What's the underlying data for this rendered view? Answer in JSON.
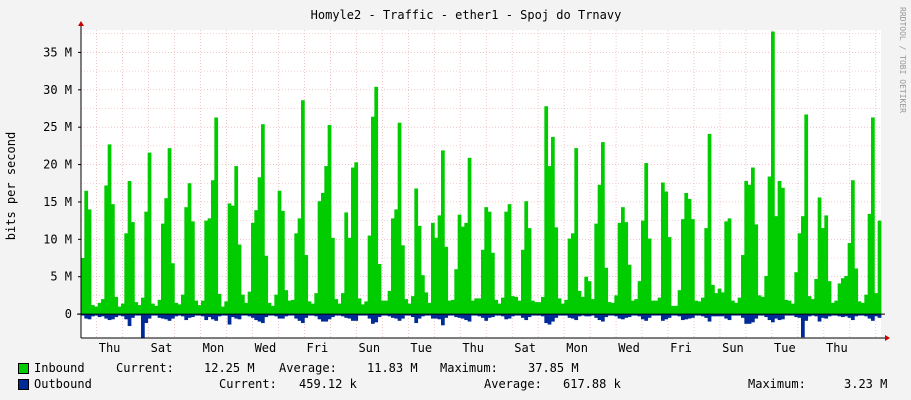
{
  "window": {
    "title": "Homyle2 - Traffic - ether1 - Spoj do Trnavy"
  },
  "watermark": "RRDTOOL / TOBI OETIKER",
  "colors": {
    "background": "#f3f3f3",
    "canvas": "#ffffff",
    "inbound": "#00cc00",
    "outbound": "#002a97",
    "grid_major": "#e6a3a3",
    "grid_minor": "#eeaaaa",
    "axis": "#c80000"
  },
  "legend": {
    "inbound": {
      "name": "Inbound",
      "current_label": "Current:",
      "current": "12.25 M",
      "average_label": "Average:",
      "average": "11.83 M",
      "maximum_label": "Maximum:",
      "maximum": "37.85 M"
    },
    "outbound": {
      "name": "Outbound",
      "current_label": "Current:",
      "current": "459.12 k",
      "average_label": "Average:",
      "average": "617.88 k",
      "maximum_label": "Maximum:",
      "maximum": "3.23 M"
    }
  },
  "chart_data": {
    "type": "area",
    "title": "Homyle2 - Traffic - ether1 - Spoj do Trnavy",
    "ylabel": "bits per second",
    "unit": "M",
    "ylim": [
      -3.2,
      38
    ],
    "yticks": [
      0,
      5,
      10,
      15,
      20,
      25,
      30,
      35
    ],
    "ytick_labels": [
      "0",
      "5 M",
      "10 M",
      "15 M",
      "20 M",
      "25 M",
      "30 M",
      "35 M"
    ],
    "x_day_labels": [
      "Thu",
      "Sat",
      "Mon",
      "Wed",
      "Fri",
      "Sun",
      "Tue",
      "Thu",
      "Sat",
      "Mon",
      "Wed",
      "Fri",
      "Sun",
      "Tue",
      "Thu"
    ],
    "x_days_total": 30.8,
    "grid": true,
    "legend_position": "bottom",
    "series": [
      {
        "name": "Inbound",
        "values": [
          7.5,
          16.5,
          14,
          1.2,
          1,
          1.5,
          2,
          17.2,
          22.7,
          14.7,
          2.3,
          1,
          1.4,
          10.8,
          17.8,
          12.3,
          1.6,
          1.2,
          2.2,
          13.7,
          21.6,
          1.4,
          1.1,
          1.9,
          12.1,
          15.5,
          22.2,
          6.8,
          1.5,
          1.3,
          2.6,
          14.3,
          17.5,
          12.4,
          1.8,
          1.2,
          1.8,
          12.5,
          12.8,
          17.9,
          26.3,
          2.7,
          1,
          1.7,
          14.8,
          14.5,
          19.8,
          9.3,
          2.6,
          1.5,
          3,
          12.2,
          13.9,
          18.3,
          25.4,
          7.8,
          1.5,
          1.1,
          2.6,
          16.5,
          13.8,
          3.2,
          1.8,
          1.9,
          10.8,
          12.8,
          28.6,
          7.9,
          1.7,
          1.4,
          2.8,
          15.1,
          16.2,
          19.8,
          25.3,
          10.2,
          2,
          1.4,
          2.8,
          13.6,
          10.2,
          19.6,
          20.3,
          2.1,
          1.3,
          1.7,
          10.5,
          26.4,
          30.4,
          6.7,
          1.8,
          1.8,
          3.1,
          12.8,
          14,
          25.6,
          9.2,
          2,
          1.4,
          2.4,
          16.8,
          11.8,
          5.2,
          2.9,
          1.5,
          12.2,
          10.2,
          13.2,
          21.9,
          9,
          1.8,
          1.9,
          6,
          13.3,
          11.7,
          12.2,
          20.9,
          1.8,
          2.1,
          2.1,
          8.6,
          14.3,
          13.7,
          8.2,
          1.9,
          1.4,
          2.2,
          13.7,
          14.7,
          2.4,
          2.3,
          1.8,
          8.6,
          15.1,
          11.5,
          1.8,
          1.6,
          1.6,
          2.3,
          27.8,
          19.8,
          23.7,
          11.6,
          2.1,
          1.4,
          1.9,
          10.1,
          10.8,
          22.2,
          3.1,
          2.3,
          5,
          4.4,
          2,
          12.1,
          17.3,
          23,
          6.2,
          1.6,
          1.5,
          2.5,
          12.2,
          14.3,
          12.3,
          6.6,
          1.8,
          2,
          4.4,
          12.5,
          20.2,
          10.1,
          1.8,
          1.8,
          2.2,
          17.6,
          16.4,
          10.3,
          1.1,
          1.1,
          3.2,
          12.7,
          16.2,
          15.4,
          12.7,
          1.8,
          1.7,
          2.2,
          11.5,
          24.1,
          3.9,
          2.8,
          3.4,
          2.9,
          12.4,
          12.8,
          1.8,
          1.5,
          2.2,
          7.9,
          17.8,
          17.3,
          19.6,
          12,
          2.5,
          2.3,
          5.1,
          18.4,
          37.8,
          13.1,
          17.8,
          16.9,
          1.9,
          1.8,
          1.4,
          5.6,
          10.8,
          13.1,
          26.7,
          2.4,
          2,
          4.7,
          15.6,
          11.5,
          13.2,
          4.4,
          1.5,
          1.8,
          4.1,
          4.8,
          5.1,
          9.5,
          17.9,
          6.1,
          1.7,
          1.5,
          2.6,
          13.4,
          26.3,
          2.8,
          12.5
        ],
        "values_min": [
          -0.2,
          -0.6,
          -0.7,
          -0.3,
          -0.2,
          -0.4,
          -0.3,
          -0.6,
          -0.8,
          -0.7,
          -0.4,
          -0.2,
          -0.3,
          -0.7,
          -1.6,
          -0.5,
          -0.2,
          -0.2,
          -3.2,
          -1.2,
          -0.6,
          -0.2,
          -0.2,
          -0.5,
          -0.6,
          -0.7,
          -0.9,
          -0.6,
          -0.3,
          -0.2,
          -0.3,
          -0.8,
          -0.5,
          -0.4,
          -0.2,
          -0.2,
          -0.3,
          -0.8,
          -0.4,
          -0.7,
          -0.9,
          -0.3,
          -0.2,
          -0.2,
          -1.4,
          -0.4,
          -0.6,
          -0.7,
          -0.2,
          -0.2,
          -0.3,
          -0.5,
          -0.8,
          -1,
          -1.2,
          -0.4,
          -0.2,
          -0.2,
          -0.3,
          -0.6,
          -0.6,
          -0.3,
          -0.2,
          -0.2,
          -0.6,
          -0.9,
          -1.2,
          -0.5,
          -0.2,
          -0.2,
          -0.3,
          -0.7,
          -1,
          -1,
          -0.7,
          -0.4,
          -0.2,
          -0.2,
          -0.3,
          -0.5,
          -0.6,
          -0.9,
          -0.9,
          -0.2,
          -0.2,
          -0.2,
          -0.6,
          -1.3,
          -1.1,
          -0.4,
          -0.2,
          -0.2,
          -0.3,
          -0.5,
          -0.6,
          -0.9,
          -0.6,
          -0.2,
          -0.2,
          -0.4,
          -1.2,
          -0.6,
          -0.3,
          -0.2,
          -0.2,
          -0.6,
          -0.6,
          -0.7,
          -1.5,
          -0.5,
          -0.2,
          -0.2,
          -0.4,
          -0.5,
          -0.6,
          -0.8,
          -1,
          -0.2,
          -0.2,
          -0.3,
          -0.5,
          -0.9,
          -0.5,
          -0.4,
          -0.2,
          -0.2,
          -0.3,
          -0.7,
          -0.6,
          -0.3,
          -0.2,
          -0.2,
          -0.5,
          -0.8,
          -0.4,
          -0.2,
          -0.2,
          -0.2,
          -0.3,
          -1.2,
          -1.4,
          -1,
          -0.5,
          -0.2,
          -0.2,
          -0.2,
          -0.5,
          -0.6,
          -0.8,
          -0.3,
          -0.2,
          -0.3,
          -0.3,
          -0.2,
          -0.5,
          -0.8,
          -1,
          -0.4,
          -0.2,
          -0.2,
          -0.3,
          -0.6,
          -0.7,
          -0.5,
          -0.4,
          -0.2,
          -0.2,
          -0.3,
          -0.7,
          -0.9,
          -0.5,
          -0.2,
          -0.2,
          -0.2,
          -0.9,
          -0.7,
          -0.5,
          -0.2,
          -0.2,
          -0.3,
          -0.8,
          -0.7,
          -0.6,
          -0.5,
          -0.2,
          -0.2,
          -0.3,
          -0.5,
          -1,
          -0.3,
          -0.3,
          -0.3,
          -0.3,
          -0.6,
          -0.8,
          -0.2,
          -0.2,
          -0.2,
          -0.5,
          -1.3,
          -1.3,
          -1.1,
          -0.6,
          -0.2,
          -0.2,
          -0.4,
          -0.8,
          -1.1,
          -0.6,
          -0.8,
          -0.7,
          -0.2,
          -0.2,
          -0.2,
          -0.4,
          -0.5,
          -3.1,
          -0.9,
          -0.3,
          -0.2,
          -0.3,
          -1,
          -0.5,
          -0.6,
          -0.3,
          -0.2,
          -0.2,
          -0.3,
          -0.4,
          -0.3,
          -0.5,
          -0.8,
          -0.3,
          -0.2,
          -0.2,
          -0.3,
          -0.6,
          -0.9,
          -0.3,
          -0.5
        ]
      }
    ]
  }
}
